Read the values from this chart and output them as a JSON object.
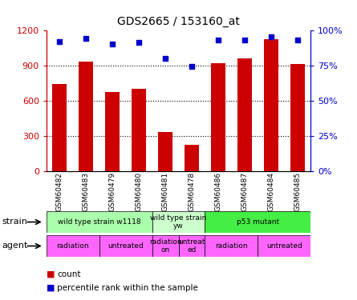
{
  "title": "GDS2665 / 153160_at",
  "samples": [
    "GSM60482",
    "GSM60483",
    "GSM60479",
    "GSM60480",
    "GSM60481",
    "GSM60478",
    "GSM60486",
    "GSM60487",
    "GSM60484",
    "GSM60485"
  ],
  "counts": [
    740,
    930,
    670,
    700,
    330,
    220,
    920,
    960,
    1120,
    910
  ],
  "percentiles": [
    92,
    94,
    90,
    91,
    80,
    74,
    93,
    93,
    95,
    93
  ],
  "strain_groups": [
    {
      "label": "wild type strain w1118",
      "start": 0,
      "end": 3,
      "color": "#aaffaa"
    },
    {
      "label": "wild type strain\nyw",
      "start": 4,
      "end": 5,
      "color": "#ccffcc"
    },
    {
      "label": "p53 mutant",
      "start": 6,
      "end": 9,
      "color": "#44ee44"
    }
  ],
  "agent_groups": [
    {
      "label": "radiation",
      "start": 0,
      "end": 1,
      "color": "#ff66ff"
    },
    {
      "label": "untreated",
      "start": 2,
      "end": 3,
      "color": "#ff66ff"
    },
    {
      "label": "radiation\non",
      "start": 4,
      "end": 4,
      "color": "#ff66ff"
    },
    {
      "label": "untreat\ned",
      "start": 5,
      "end": 5,
      "color": "#ff66ff"
    },
    {
      "label": "radiation",
      "start": 6,
      "end": 7,
      "color": "#ff66ff"
    },
    {
      "label": "untreated",
      "start": 8,
      "end": 9,
      "color": "#ff66ff"
    }
  ],
  "bar_color": "#cc0000",
  "dot_color": "#0000cc",
  "ylim_left": [
    0,
    1200
  ],
  "ylim_right": [
    0,
    100
  ],
  "yticks_left": [
    0,
    300,
    600,
    900,
    1200
  ],
  "yticks_right": [
    0,
    25,
    50,
    75,
    100
  ],
  "ytick_labels_left": [
    "0",
    "300",
    "600",
    "900",
    "1200"
  ],
  "ytick_labels_right": [
    "0%",
    "25%",
    "50%",
    "75%",
    "100%"
  ],
  "grid_values": [
    300,
    600,
    900
  ],
  "bg_color": "#ffffff",
  "label_strain": "strain",
  "label_agent": "agent"
}
